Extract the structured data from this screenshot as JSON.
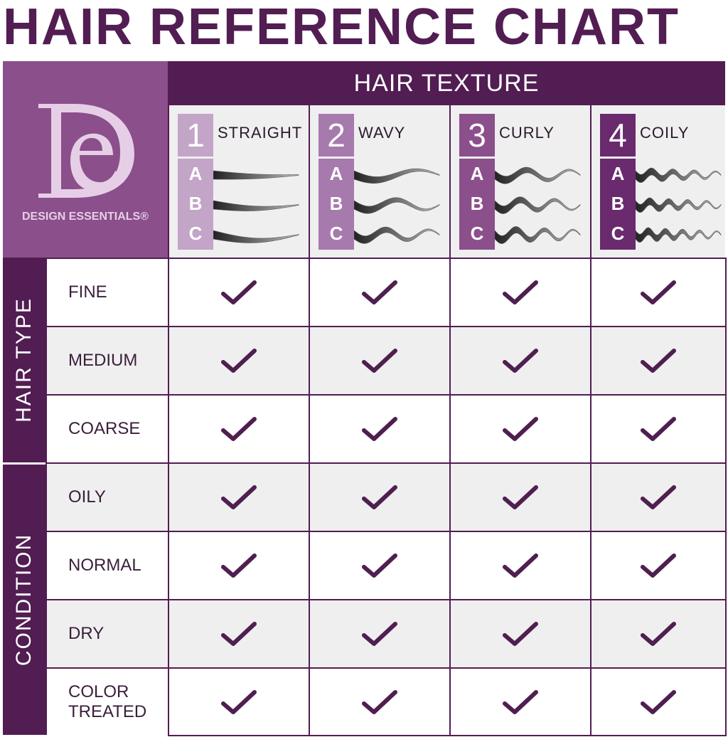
{
  "title": "HAIR REFERENCE CHART",
  "logo": {
    "letters": "DE",
    "brand": "DESIGN ESSENTIALS®"
  },
  "header": "HAIR TEXTURE",
  "textures": [
    {
      "number": "1",
      "name": "STRAIGHT",
      "color": "#c3a5c8",
      "subtypes": [
        "A",
        "B",
        "C"
      ]
    },
    {
      "number": "2",
      "name": "WAVY",
      "color": "#a77aae",
      "subtypes": [
        "A",
        "B",
        "C"
      ]
    },
    {
      "number": "3",
      "name": "CURLY",
      "color": "#8b4f8b",
      "subtypes": [
        "A",
        "B",
        "C"
      ]
    },
    {
      "number": "4",
      "name": "COILY",
      "color": "#6a2a6e",
      "subtypes": [
        "A",
        "B",
        "C"
      ]
    }
  ],
  "groups": [
    {
      "label": "HAIR TYPE",
      "rows": [
        "FINE",
        "MEDIUM",
        "COARSE"
      ]
    },
    {
      "label": "CONDITION",
      "rows": [
        "OILY",
        "NORMAL",
        "DRY",
        "COLOR TREATED"
      ]
    }
  ],
  "check_icon": "checkmark-icon",
  "all_checked": true,
  "colors": {
    "dark": "#521d52",
    "logo_bg": "#8b4f8b",
    "check": "#4f1f50",
    "alt_row": "#efefef"
  }
}
